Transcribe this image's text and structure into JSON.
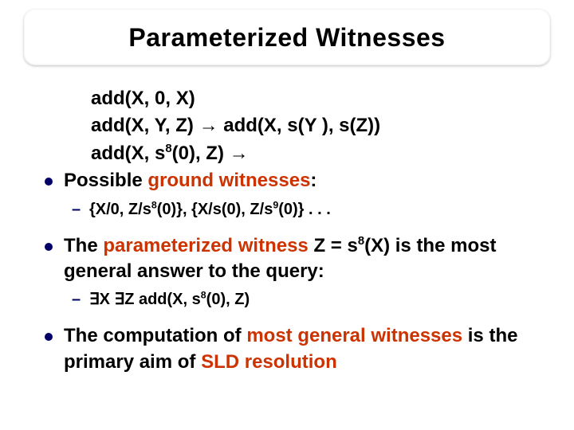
{
  "title": "Parameterized Witnesses",
  "colors": {
    "highlight": "#cc3300",
    "bullet": "#000066",
    "text": "#000000",
    "background": "#ffffff"
  },
  "typography": {
    "title_fontsize": 32,
    "body_fontsize": 24,
    "sub_fontsize": 20,
    "weight": "700",
    "family": "Arial"
  },
  "code": {
    "l1": "add(X, 0, X)",
    "l2_lhs": "add(X, Y, Z) ",
    "l2_arrow": "→",
    "l2_rhs": " add(X, s(Y ), s(Z))",
    "l3_lhs_a": "add(X, s",
    "l3_sup": "8",
    "l3_lhs_b": "(0), Z) ",
    "l3_arrow": "→"
  },
  "b1": {
    "a": "Possible ",
    "hl": "ground witnesses",
    "b": ":"
  },
  "s1": {
    "a": "{X/0, Z/s",
    "sup1": "8",
    "b": "(0)}, {X/s(0), Z/s",
    "sup2": "9",
    "c": "(0)} . . ."
  },
  "b2": {
    "a": "The ",
    "hl1": "parameterized witness",
    "b": " Z = s",
    "sup": "8",
    "c": "(X) is the most general answer to the query:"
  },
  "s2": {
    "ex1": "∃",
    "x": "X ",
    "ex2": "∃",
    "z": "Z add(X, s",
    "sup": "8",
    "tail": "(0), Z)"
  },
  "b3": {
    "a": "The computation of ",
    "hl": "most general witnesses",
    "b": " is the primary aim of ",
    "hl2": "SLD resolution"
  }
}
